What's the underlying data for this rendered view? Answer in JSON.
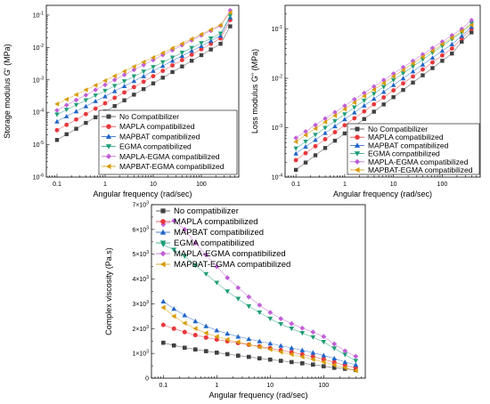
{
  "series_colors": [
    "#404040",
    "#e8383d",
    "#1f64c8",
    "#1f9e78",
    "#c05fd6",
    "#d69a00"
  ],
  "chart_data": [
    {
      "type": "line",
      "scale": "log-log",
      "xlabel": "Angular frequency (rad/sec)",
      "ylabel": "Storage modulus G' (MPa)",
      "xlim": [
        0.06,
        600
      ],
      "ylim": [
        1e-06,
        0.2
      ],
      "x_ticks": [
        "0.1",
        "1",
        "10",
        "100"
      ],
      "y_tick_exponents": [
        "-6",
        "-5",
        "-4",
        "-3",
        "-2",
        "-1"
      ],
      "legend_position": "bottom-right",
      "x": [
        0.1,
        0.158,
        0.251,
        0.398,
        0.631,
        1,
        1.58,
        2.51,
        3.98,
        6.31,
        10,
        15.8,
        25.1,
        39.8,
        63.1,
        100,
        158,
        251,
        398
      ],
      "series": [
        {
          "name": "No Compatibilizer",
          "values": [
            1.4e-05,
            2.1e-05,
            3.1e-05,
            4.7e-05,
            7e-05,
            0.000105,
            0.000156,
            0.000234,
            0.00035,
            0.00052,
            0.00078,
            0.00117,
            0.00175,
            0.0026,
            0.0039,
            0.0058,
            0.0087,
            0.013,
            0.045
          ]
        },
        {
          "name": "MAPLA compatibilized",
          "values": [
            2.8e-05,
            4.1e-05,
            6e-05,
            8.8e-05,
            0.00013,
            0.00019,
            0.00028,
            0.00041,
            0.0006,
            0.00088,
            0.0013,
            0.0019,
            0.0028,
            0.0041,
            0.006,
            0.0088,
            0.013,
            0.019,
            0.07
          ]
        },
        {
          "name": "MAPBAT compatibilized",
          "values": [
            5.2e-05,
            7.5e-05,
            0.000107,
            0.000153,
            0.00022,
            0.00031,
            0.00045,
            0.00064,
            0.00092,
            0.0013,
            0.0019,
            0.0027,
            0.0039,
            0.0055,
            0.0079,
            0.011,
            0.016,
            0.023,
            0.085
          ]
        },
        {
          "name": "EGMA compatibilized",
          "values": [
            8.5e-05,
            0.00012,
            0.000168,
            0.000235,
            0.00033,
            0.00046,
            0.00065,
            0.00091,
            0.00128,
            0.0018,
            0.0025,
            0.0035,
            0.0049,
            0.0069,
            0.0097,
            0.0136,
            0.019,
            0.027,
            0.095
          ]
        },
        {
          "name": "MAPLA-EGMA compatibilized",
          "values": [
            0.000115,
            0.000166,
            0.00024,
            0.00034,
            0.00049,
            0.0007,
            0.001,
            0.00143,
            0.00204,
            0.0029,
            0.0041,
            0.0059,
            0.0083,
            0.0118,
            0.0167,
            0.0236,
            0.033,
            0.047,
            0.14
          ]
        },
        {
          "name": "MAPBAT-EGMA compatibilized",
          "values": [
            0.00018,
            0.000251,
            0.00035,
            0.00049,
            0.00068,
            0.00095,
            0.00132,
            0.00184,
            0.00256,
            0.00356,
            0.0049,
            0.0068,
            0.0095,
            0.0132,
            0.0184,
            0.0256,
            0.0356,
            0.049,
            0.12
          ]
        }
      ]
    },
    {
      "type": "line",
      "scale": "log-log",
      "xlabel": "Angular frequency (rad/sec)",
      "ylabel": "Loss modulus G\" (MPa)",
      "xlim": [
        0.06,
        600
      ],
      "ylim": [
        0.0001,
        0.3
      ],
      "x_ticks": [
        "0.1",
        "1",
        "10",
        "100"
      ],
      "y_tick_exponents": [
        "-4",
        "-3",
        "-2",
        "-1"
      ],
      "legend_position": "bottom-right",
      "x": [
        0.1,
        0.158,
        0.251,
        0.398,
        0.631,
        1,
        1.58,
        2.51,
        3.98,
        6.31,
        10,
        15.8,
        25.1,
        39.8,
        63.1,
        100,
        158,
        251,
        398
      ],
      "series": [
        {
          "name": "No Compatibilizer",
          "values": [
            0.00014,
            0.000197,
            0.000276,
            0.000388,
            0.000545,
            0.000765,
            0.00107,
            0.0015,
            0.00211,
            0.00296,
            0.00415,
            0.0058,
            0.0082,
            0.0115,
            0.0161,
            0.0226,
            0.0317,
            0.055,
            0.085
          ]
        },
        {
          "name": "MAPLA compatibilized",
          "values": [
            0.00022,
            0.000305,
            0.000422,
            0.000584,
            0.00081,
            0.00112,
            0.00155,
            0.00214,
            0.00297,
            0.0041,
            0.0057,
            0.0079,
            0.0109,
            0.0151,
            0.0209,
            0.029,
            0.04,
            0.065,
            0.1
          ]
        },
        {
          "name": "MAPBAT compatibilized",
          "values": [
            0.0003,
            0.000413,
            0.000568,
            0.00078,
            0.00107,
            0.00148,
            0.00203,
            0.0028,
            0.00384,
            0.0053,
            0.0073,
            0.01,
            0.0138,
            0.019,
            0.026,
            0.036,
            0.049,
            0.072,
            0.11
          ]
        },
        {
          "name": "EGMA compatibilized",
          "values": [
            0.00038,
            0.000522,
            0.000718,
            0.00099,
            0.00136,
            0.00187,
            0.00257,
            0.00353,
            0.00485,
            0.0067,
            0.0092,
            0.0126,
            0.0173,
            0.024,
            0.033,
            0.045,
            0.062,
            0.085,
            0.13
          ]
        },
        {
          "name": "MAPLA-EGMA compatibilized",
          "values": [
            0.00062,
            0.00084,
            0.00113,
            0.00153,
            0.00206,
            0.00278,
            0.00375,
            0.00505,
            0.0068,
            0.0092,
            0.0124,
            0.0167,
            0.0225,
            0.0304,
            0.041,
            0.055,
            0.074,
            0.1,
            0.15
          ]
        },
        {
          "name": "MAPBAT-EGMA compatibilized",
          "values": [
            0.00052,
            0.00071,
            0.00096,
            0.0013,
            0.00176,
            0.00238,
            0.00323,
            0.00437,
            0.0059,
            0.008,
            0.0109,
            0.0147,
            0.0199,
            0.027,
            0.036,
            0.049,
            0.066,
            0.09,
            0.12
          ]
        }
      ]
    },
    {
      "type": "line",
      "scale": "log-x",
      "xlabel": "Angular frequency (rad/sec)",
      "ylabel": "Complex viscosity (Pa.s)",
      "xlim": [
        0.06,
        600
      ],
      "ylim": [
        0,
        7000
      ],
      "x_ticks": [
        "0.1",
        "1",
        "10",
        "100"
      ],
      "y_ticks": [
        {
          "value": 0,
          "mant": "0",
          "exp": ""
        },
        {
          "value": 1000,
          "mant": "1×10",
          "exp": "3"
        },
        {
          "value": 2000,
          "mant": "2×10",
          "exp": "3"
        },
        {
          "value": 3000,
          "mant": "3×10",
          "exp": "3"
        },
        {
          "value": 4000,
          "mant": "4×10",
          "exp": "3"
        },
        {
          "value": 5000,
          "mant": "5×10",
          "exp": "3"
        },
        {
          "value": 6000,
          "mant": "6×10",
          "exp": "3"
        },
        {
          "value": 7000,
          "mant": "7×10",
          "exp": "3"
        }
      ],
      "legend_position": "top-right",
      "x": [
        0.1,
        0.158,
        0.251,
        0.398,
        0.631,
        1,
        1.58,
        2.51,
        3.98,
        6.31,
        10,
        15.8,
        25.1,
        39.8,
        63.1,
        100,
        158,
        251,
        398
      ],
      "series": [
        {
          "name": "No compatibilizer",
          "values": [
            1430,
            1320,
            1230,
            1160,
            1090,
            1030,
            970,
            910,
            860,
            800,
            750,
            700,
            650,
            600,
            550,
            480,
            420,
            380,
            330
          ]
        },
        {
          "name": "MAPLA compatibilized",
          "values": [
            2150,
            2000,
            1860,
            1740,
            1640,
            1560,
            1490,
            1420,
            1350,
            1280,
            1210,
            1130,
            1050,
            960,
            870,
            760,
            640,
            520,
            420
          ]
        },
        {
          "name": "MAPBAT compatibilized",
          "values": [
            3100,
            2800,
            2540,
            2300,
            2100,
            1930,
            1800,
            1680,
            1580,
            1490,
            1400,
            1310,
            1220,
            1130,
            1030,
            920,
            800,
            650,
            540
          ]
        },
        {
          "name": "EGMA compatibilized",
          "values": [
            5380,
            5180,
            4920,
            4550,
            4200,
            3850,
            3500,
            3200,
            2900,
            2650,
            2400,
            2180,
            2000,
            1820,
            1650,
            1460,
            1200,
            950,
            700
          ]
        },
        {
          "name": "MAPLA-EGMA compatibilized",
          "values": [
            6200,
            6350,
            6000,
            5450,
            4970,
            4500,
            4050,
            3650,
            3280,
            2950,
            2650,
            2400,
            2200,
            2020,
            1860,
            1680,
            1380,
            1100,
            880
          ]
        },
        {
          "name": "MAPBAT-EGMA compatibilized",
          "values": [
            2850,
            2500,
            2220,
            2000,
            1820,
            1680,
            1560,
            1460,
            1360,
            1260,
            1160,
            1060,
            960,
            860,
            760,
            650,
            530,
            420,
            300
          ]
        }
      ]
    }
  ]
}
